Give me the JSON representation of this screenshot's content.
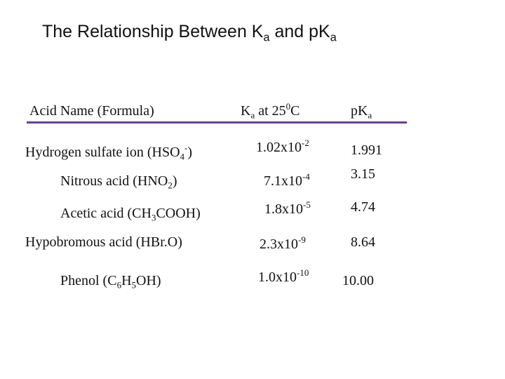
{
  "title": [
    "The Relationship Between K",
    "a",
    " and pK",
    "a"
  ],
  "table": {
    "header": [
      [
        "Acid Name (Formula)"
      ],
      [
        "K",
        "a",
        " at 25",
        "0",
        "C"
      ],
      [
        "pK",
        "a"
      ]
    ],
    "rows": [
      [
        [
          "Hydrogen sulfate ion (HSO",
          "4",
          "-",
          ")"
        ],
        [
          "1.02x10",
          "-2"
        ],
        "1.991"
      ],
      [
        [
          "Nitrous acid (HNO",
          "2",
          ")"
        ],
        [
          "7.1x10",
          "-4"
        ],
        "3.15"
      ],
      [
        [
          "Acetic acid (CH",
          "3",
          "COOH)"
        ],
        [
          "1.8x10",
          "-5"
        ],
        "4.74"
      ],
      [
        [
          "Hypobromous acid (HBr.O)"
        ],
        [
          "2.3x10",
          "-9"
        ],
        "8.64"
      ],
      [
        [
          "Phenol (C",
          "6",
          "H",
          "5",
          "OH)"
        ],
        [
          "1.0x10",
          "-10"
        ],
        "10.00"
      ]
    ]
  }
}
